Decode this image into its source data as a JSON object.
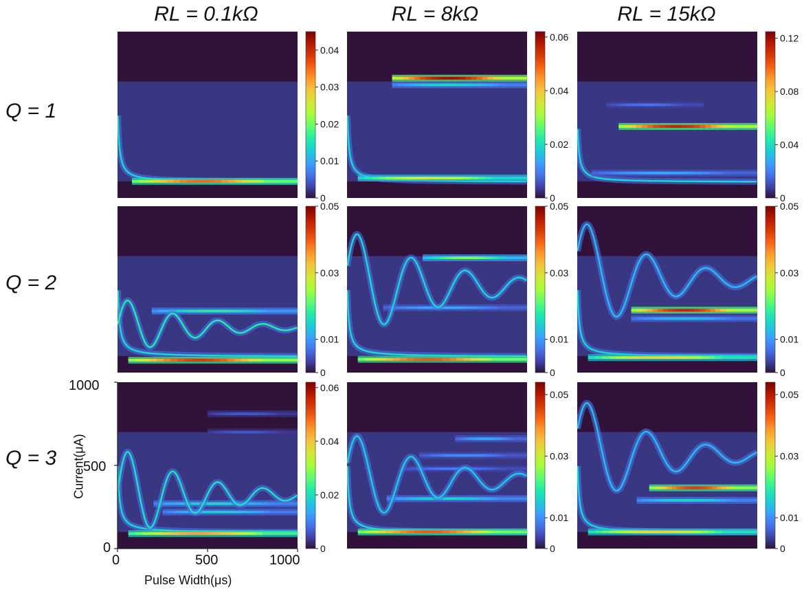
{
  "figure": {
    "columns": [
      "RL = 0.1kΩ",
      "RL = 8kΩ",
      "RL = 15kΩ"
    ],
    "rows": [
      "Q = 1",
      "Q = 2",
      "Q = 3"
    ]
  },
  "chart_data": {
    "type": "heatmap",
    "xlabel": "Pulse Width(μs)",
    "ylabel": "Current(μA)",
    "xlim": [
      0,
      1000
    ],
    "ylim": [
      0,
      1000
    ],
    "xticks": [
      "0",
      "500",
      "1000"
    ],
    "yticks": [
      "0",
      "500",
      "1000"
    ],
    "colormap": [
      "#30123b",
      "#4145ab",
      "#4675ed",
      "#39a2fc",
      "#1bcfd4",
      "#24eca6",
      "#61fc6c",
      "#a4fc3b",
      "#d1e834",
      "#f3c63a",
      "#fe9b2d",
      "#f36315",
      "#d93806",
      "#b11901",
      "#7a0403"
    ],
    "panels": [
      {
        "row": "Q = 1",
        "column": "RL = 0.1kΩ",
        "colorbar_max": 0.045,
        "colorbar_ticks": [
          "0",
          "0.01",
          "0.02",
          "0.03",
          "0.04"
        ],
        "features": [
          {
            "kind": "dip",
            "amp": 0.5
          },
          {
            "kind": "band",
            "y": 100,
            "intensity": 0.78,
            "x_start": 80
          }
        ]
      },
      {
        "row": "Q = 1",
        "column": "RL = 8kΩ",
        "colorbar_max": 0.062,
        "colorbar_ticks": [
          "0",
          "0.02",
          "0.04",
          "0.06"
        ],
        "features": [
          {
            "kind": "dip",
            "amp": 0.5
          },
          {
            "kind": "band",
            "y": 120,
            "intensity": 0.55,
            "x_start": 60
          },
          {
            "kind": "band",
            "y": 720,
            "intensity": 0.95,
            "x_start": 250
          },
          {
            "kind": "band",
            "y": 680,
            "intensity": 0.3,
            "x_start": 250
          }
        ]
      },
      {
        "row": "Q = 1",
        "column": "RL = 15kΩ",
        "colorbar_max": 0.125,
        "colorbar_ticks": [
          "0",
          "0.04",
          "0.08",
          "0.12"
        ],
        "features": [
          {
            "kind": "dip",
            "amp": 0.4
          },
          {
            "kind": "band",
            "y": 150,
            "intensity": 0.22,
            "x_start": 80
          },
          {
            "kind": "band",
            "y": 430,
            "intensity": 0.9,
            "x_start": 230
          },
          {
            "kind": "band",
            "y": 560,
            "intensity": 0.14,
            "x_start": 160,
            "x_end": 700
          }
        ]
      },
      {
        "row": "Q = 2",
        "column": "RL = 0.1kΩ",
        "colorbar_max": 0.05,
        "colorbar_ticks": [
          "0",
          "0.01",
          "0.03",
          "0.05"
        ],
        "features": [
          {
            "kind": "dip",
            "amp": 0.5
          },
          {
            "kind": "band",
            "y": 75,
            "intensity": 0.85,
            "x_start": 60
          },
          {
            "kind": "band",
            "y": 370,
            "intensity": 0.35,
            "x_start": 190
          },
          {
            "kind": "osc",
            "center": 270,
            "amp": 190,
            "decay": 380,
            "period": 250,
            "intensity": 0.35
          }
        ]
      },
      {
        "row": "Q = 2",
        "column": "RL = 8kΩ",
        "colorbar_max": 0.05,
        "colorbar_ticks": [
          "0",
          "0.01",
          "0.03",
          "0.05"
        ],
        "features": [
          {
            "kind": "dip",
            "amp": 0.5
          },
          {
            "kind": "band",
            "y": 80,
            "intensity": 0.8,
            "x_start": 60
          },
          {
            "kind": "band",
            "y": 390,
            "intensity": 0.22,
            "x_start": 200
          },
          {
            "kind": "band",
            "y": 690,
            "intensity": 0.45,
            "x_start": 420
          },
          {
            "kind": "osc",
            "center": 520,
            "amp": 350,
            "decay": 500,
            "period": 300,
            "intensity": 0.3
          }
        ]
      },
      {
        "row": "Q = 2",
        "column": "RL = 15kΩ",
        "colorbar_max": 0.05,
        "colorbar_ticks": [
          "0",
          "0.01",
          "0.03",
          "0.05"
        ],
        "features": [
          {
            "kind": "dip",
            "amp": 0.5
          },
          {
            "kind": "band",
            "y": 90,
            "intensity": 0.6,
            "x_start": 60
          },
          {
            "kind": "band",
            "y": 375,
            "intensity": 0.9,
            "x_start": 300
          },
          {
            "kind": "band",
            "y": 325,
            "intensity": 0.25,
            "x_start": 300
          },
          {
            "kind": "osc",
            "center": 560,
            "amp": 380,
            "decay": 420,
            "period": 330,
            "intensity": 0.25
          }
        ]
      },
      {
        "row": "Q = 3",
        "column": "RL = 0.1kΩ",
        "colorbar_max": 0.062,
        "colorbar_ticks": [
          "0",
          "0.02",
          "0.04",
          "0.06"
        ],
        "features": [
          {
            "kind": "dip",
            "amp": 0.5
          },
          {
            "kind": "band",
            "y": 90,
            "intensity": 0.7,
            "x_start": 60
          },
          {
            "kind": "band",
            "y": 270,
            "intensity": 0.3,
            "x_start": 200
          },
          {
            "kind": "band",
            "y": 220,
            "intensity": 0.28,
            "x_start": 250
          },
          {
            "kind": "band",
            "y": 700,
            "intensity": 0.1,
            "x_start": 500
          },
          {
            "kind": "band",
            "y": 810,
            "intensity": 0.1,
            "x_start": 500
          },
          {
            "kind": "osc",
            "center": 320,
            "amp": 300,
            "decay": 420,
            "period": 250,
            "intensity": 0.32
          }
        ]
      },
      {
        "row": "Q = 3",
        "column": "RL = 8kΩ",
        "colorbar_max": 0.054,
        "colorbar_ticks": [
          "0",
          "0.01",
          "0.03",
          "0.05"
        ],
        "features": [
          {
            "kind": "dip",
            "amp": 0.5
          },
          {
            "kind": "band",
            "y": 100,
            "intensity": 0.8,
            "x_start": 60
          },
          {
            "kind": "band",
            "y": 300,
            "intensity": 0.3,
            "x_start": 220
          },
          {
            "kind": "band",
            "y": 480,
            "intensity": 0.15,
            "x_start": 300
          },
          {
            "kind": "band",
            "y": 560,
            "intensity": 0.18,
            "x_start": 400
          },
          {
            "kind": "band",
            "y": 660,
            "intensity": 0.22,
            "x_start": 600
          },
          {
            "kind": "osc",
            "center": 410,
            "amp": 300,
            "decay": 480,
            "period": 300,
            "intensity": 0.28
          }
        ]
      },
      {
        "row": "Q = 3",
        "column": "RL = 15kΩ",
        "colorbar_max": 0.054,
        "colorbar_ticks": [
          "0",
          "0.01",
          "0.03",
          "0.05"
        ],
        "features": [
          {
            "kind": "dip",
            "amp": 0.5
          },
          {
            "kind": "band",
            "y": 100,
            "intensity": 0.6,
            "x_start": 60
          },
          {
            "kind": "band",
            "y": 290,
            "intensity": 0.3,
            "x_start": 330
          },
          {
            "kind": "band",
            "y": 365,
            "intensity": 0.85,
            "x_start": 400
          },
          {
            "kind": "osc",
            "center": 560,
            "amp": 360,
            "decay": 420,
            "period": 330,
            "intensity": 0.25
          }
        ]
      }
    ]
  }
}
